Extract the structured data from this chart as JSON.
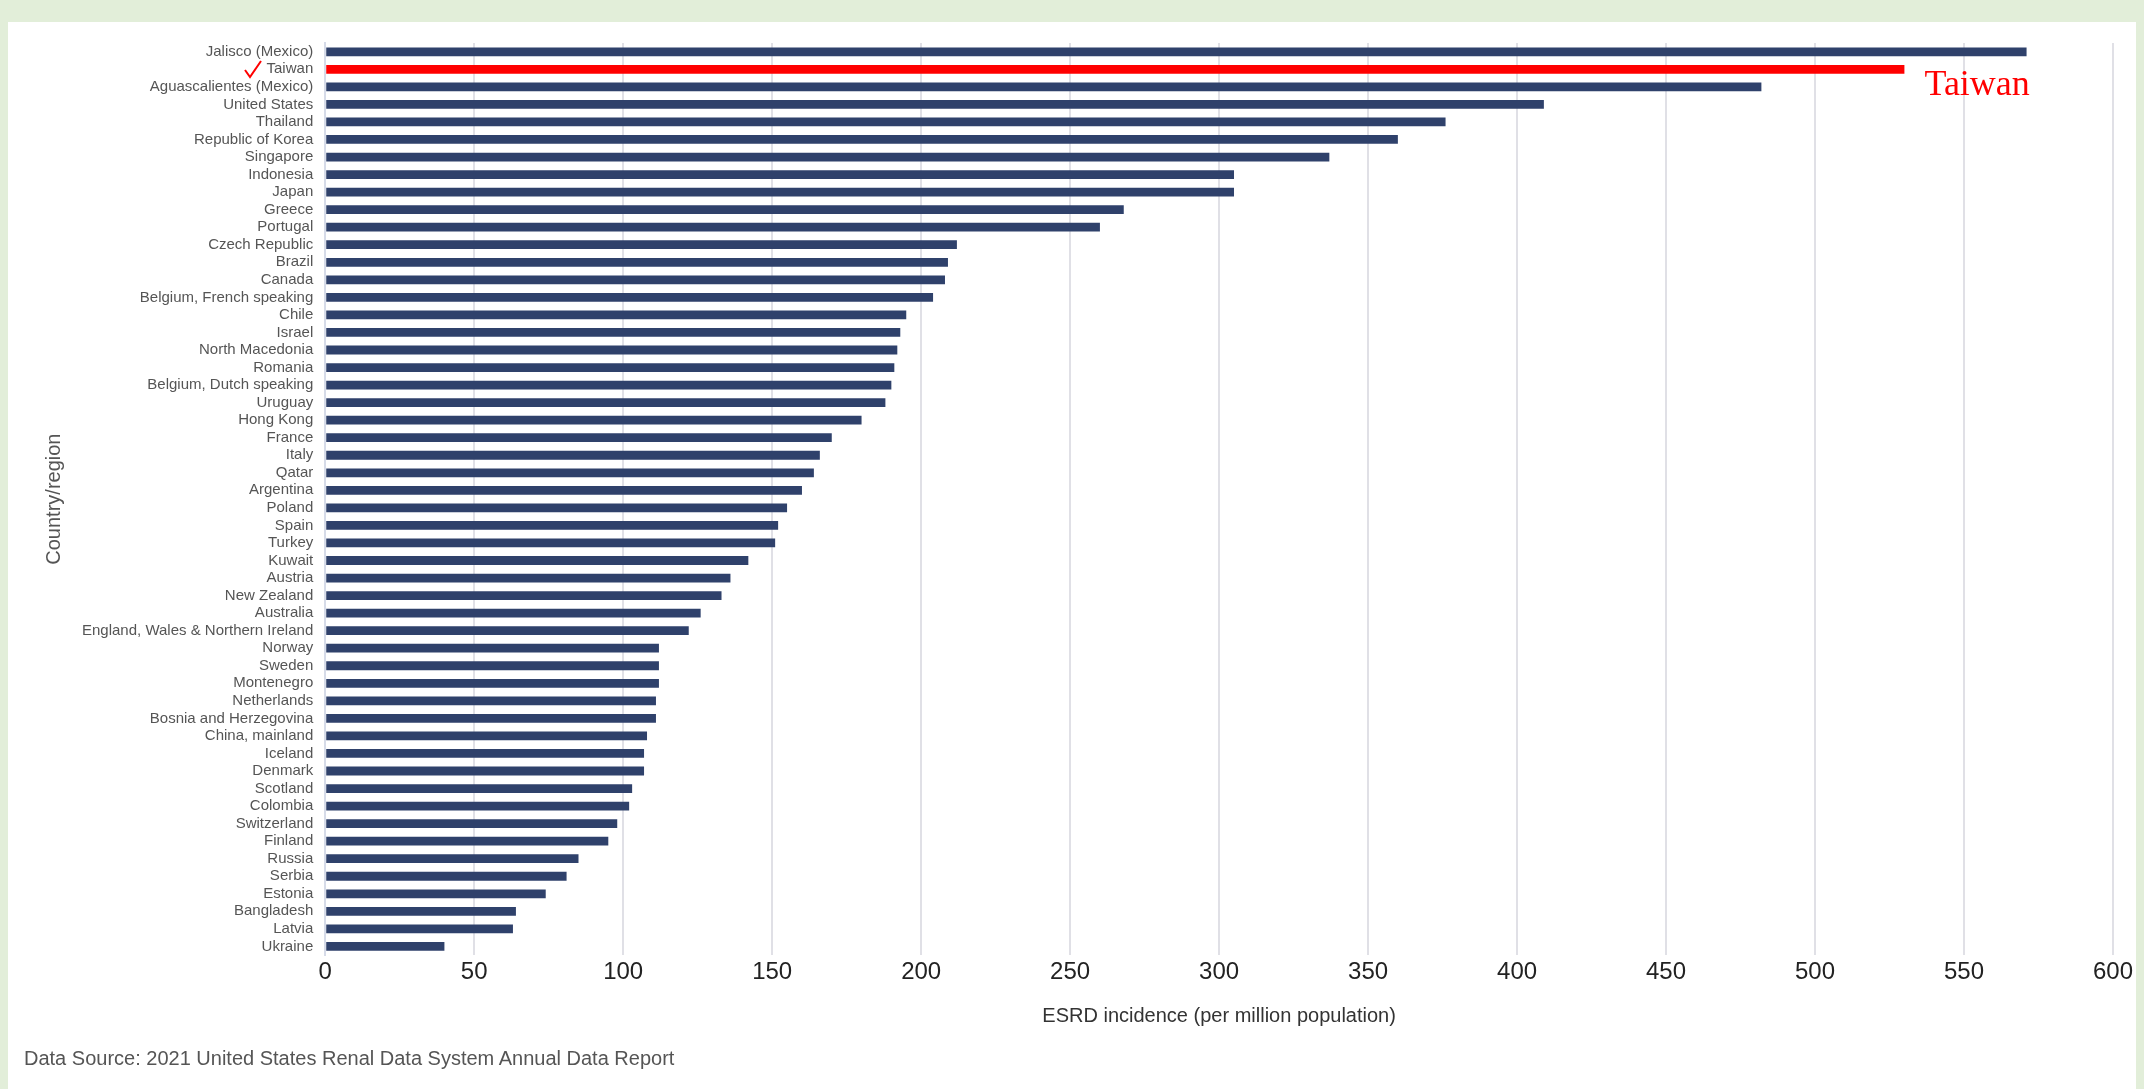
{
  "chart_data": {
    "type": "bar",
    "orientation": "horizontal",
    "xlabel": "ESRD incidence (per million population)",
    "ylabel": "Country/region",
    "categories": [
      "Jalisco (Mexico)",
      "Taiwan",
      "Aguascalientes (Mexico)",
      "United States",
      "Thailand",
      "Republic of Korea",
      "Singapore",
      "Indonesia",
      "Japan",
      "Greece",
      "Portugal",
      "Czech Republic",
      "Brazil",
      "Canada",
      "Belgium, French speaking",
      "Chile",
      "Israel",
      "North Macedonia",
      "Romania",
      "Belgium, Dutch speaking",
      "Uruguay",
      "Hong Kong",
      "France",
      "Italy",
      "Qatar",
      "Argentina",
      "Poland",
      "Spain",
      "Turkey",
      "Kuwait",
      "Austria",
      "New Zealand",
      "Australia",
      "England, Wales & Northern Ireland",
      "Norway",
      "Sweden",
      "Montenegro",
      "Netherlands",
      "Bosnia and Herzegovina",
      "China, mainland",
      "Iceland",
      "Denmark",
      "Scotland",
      "Colombia",
      "Switzerland",
      "Finland",
      "Russia",
      "Serbia",
      "Estonia",
      "Bangladesh",
      "Latvia",
      "Ukraine"
    ],
    "values": [
      571,
      530,
      482,
      409,
      376,
      360,
      337,
      305,
      305,
      268,
      260,
      212,
      209,
      208,
      204,
      195,
      193,
      192,
      191,
      190,
      188,
      180,
      170,
      166,
      164,
      160,
      155,
      152,
      151,
      142,
      136,
      133,
      126,
      122,
      112,
      112,
      112,
      111,
      111,
      108,
      107,
      107,
      103,
      102,
      98,
      95,
      85,
      81,
      74,
      64,
      63,
      40
    ],
    "colors": [
      "#2f416b",
      "#ff0000",
      "#2f416b",
      "#2f416b",
      "#2f416b",
      "#2f416b",
      "#2f416b",
      "#2f416b",
      "#2f416b",
      "#2f416b",
      "#2f416b",
      "#2f416b",
      "#2f416b",
      "#2f416b",
      "#2f416b",
      "#2f416b",
      "#2f416b",
      "#2f416b",
      "#2f416b",
      "#2f416b",
      "#2f416b",
      "#2f416b",
      "#2f416b",
      "#2f416b",
      "#2f416b",
      "#2f416b",
      "#2f416b",
      "#2f416b",
      "#2f416b",
      "#2f416b",
      "#2f416b",
      "#2f416b",
      "#2f416b",
      "#2f416b",
      "#2f416b",
      "#2f416b",
      "#2f416b",
      "#2f416b",
      "#2f416b",
      "#2f416b",
      "#2f416b",
      "#2f416b",
      "#2f416b",
      "#2f416b",
      "#2f416b",
      "#2f416b",
      "#2f416b",
      "#2f416b",
      "#2f416b",
      "#2f416b",
      "#2f416b",
      "#2f416b"
    ],
    "xlim": [
      0,
      600
    ],
    "xticks": [
      0,
      50,
      100,
      150,
      200,
      250,
      300,
      350,
      400,
      450,
      500,
      550,
      600
    ],
    "grid": "x",
    "legend": false,
    "annotations": [
      {
        "text": "Taiwan",
        "x": 530,
        "y": "Taiwan"
      },
      "Data Source: 2021 United States Renal Data System Annual Data Report"
    ]
  }
}
